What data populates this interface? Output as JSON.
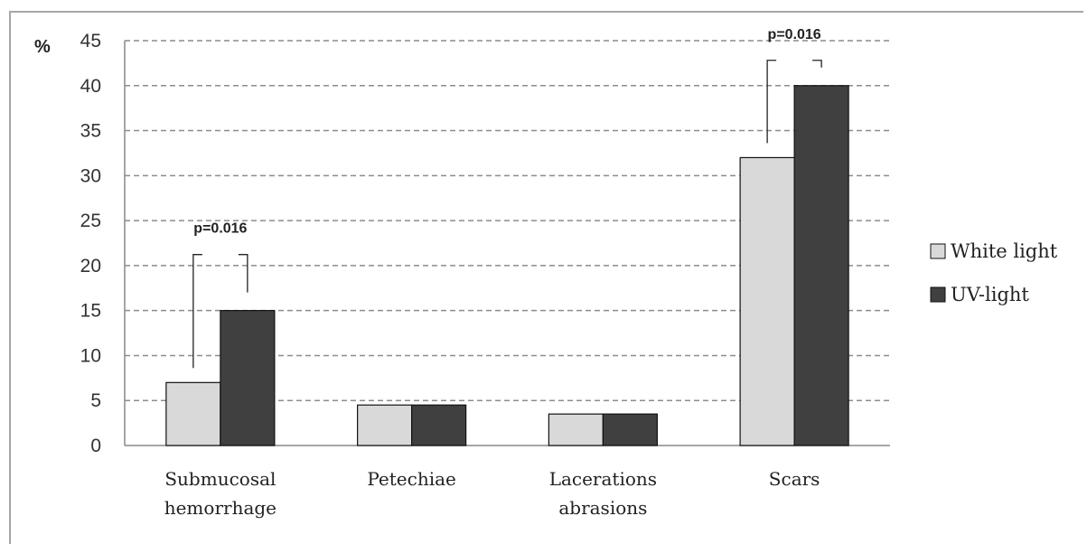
{
  "chart_data": {
    "type": "bar",
    "ylabel": "%",
    "ylim": [
      0,
      45
    ],
    "yticks": [
      0,
      5,
      10,
      15,
      20,
      25,
      30,
      35,
      40,
      45
    ],
    "grid": true,
    "legend_position": "right",
    "categories": [
      [
        "Submucosal",
        "hemorrhage"
      ],
      [
        "Petechiae"
      ],
      [
        "Lacerations",
        "abrasions"
      ],
      [
        "Scars"
      ]
    ],
    "series": [
      {
        "name": "White light",
        "color": "#d9d9d9",
        "values": [
          7,
          4.5,
          3.5,
          32
        ]
      },
      {
        "name": "UV-light",
        "color": "#404040",
        "values": [
          15,
          4.5,
          3.5,
          40
        ]
      }
    ],
    "annotations": [
      {
        "category_index": 0,
        "text": "p=0.016"
      },
      {
        "category_index": 3,
        "text": "p=0.016"
      }
    ]
  }
}
